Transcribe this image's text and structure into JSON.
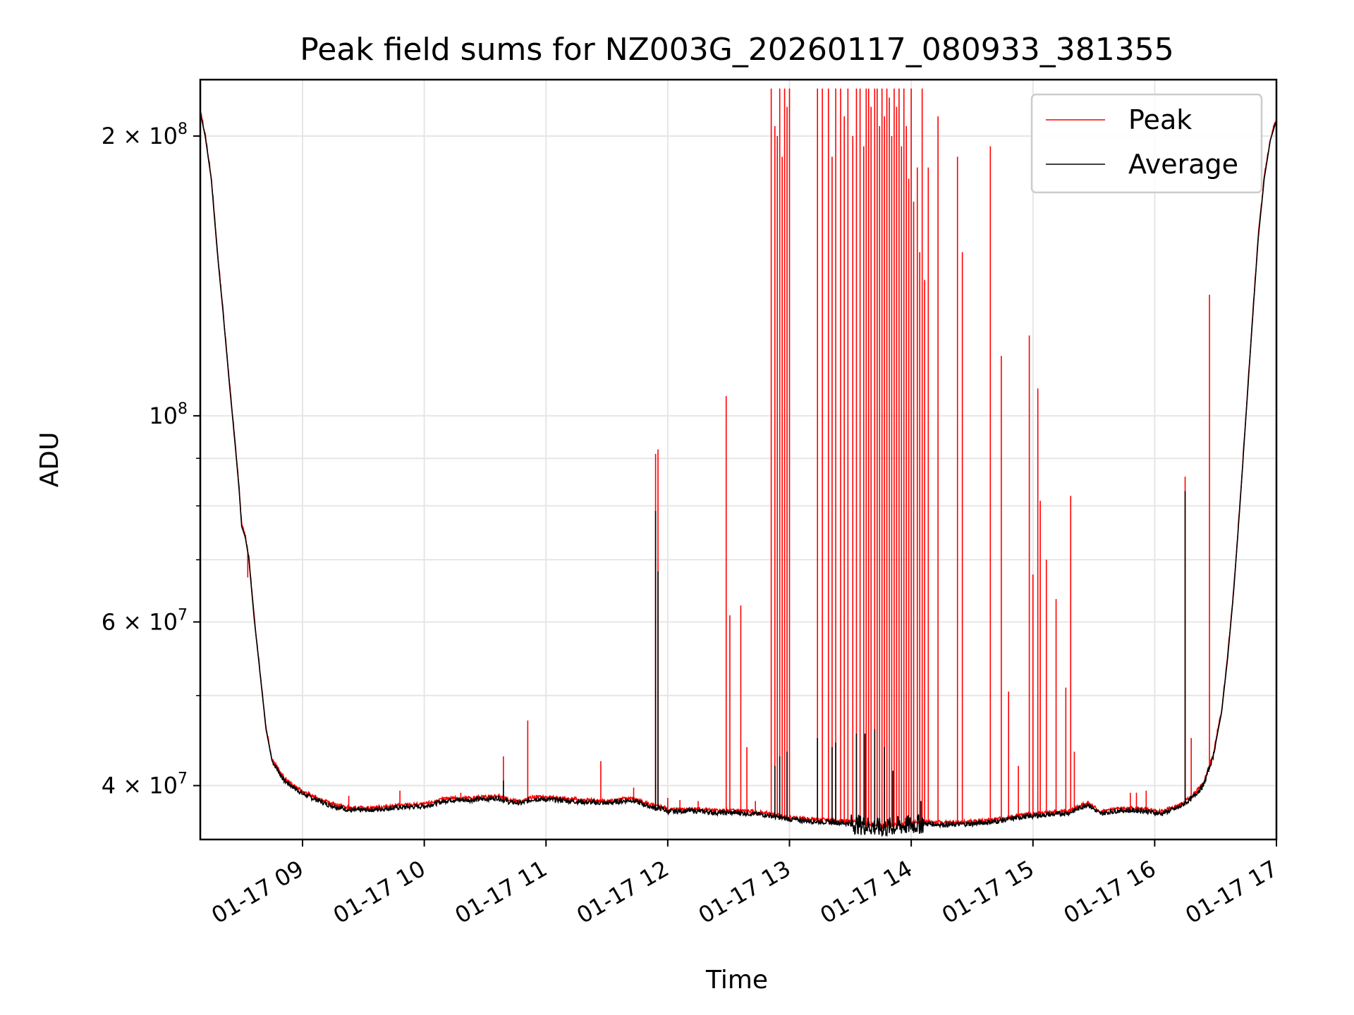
{
  "chart_data": {
    "type": "line",
    "title": "Peak field sums for NZ003G_20260117_080933_381355",
    "xlabel": "Time",
    "ylabel": "ADU",
    "x_unit": "hours since 2026-01-17 00:00",
    "xlim": [
      8.16,
      17.0
    ],
    "ylim": [
      35000000,
      230000000
    ],
    "yscale": "log",
    "grid": true,
    "legend_position": "upper right",
    "x_ticks": [
      {
        "value": 9,
        "label": "01-17 09"
      },
      {
        "value": 10,
        "label": "01-17 10"
      },
      {
        "value": 11,
        "label": "01-17 11"
      },
      {
        "value": 12,
        "label": "01-17 12"
      },
      {
        "value": 13,
        "label": "01-17 13"
      },
      {
        "value": 14,
        "label": "01-17 14"
      },
      {
        "value": 15,
        "label": "01-17 15"
      },
      {
        "value": 16,
        "label": "01-17 16"
      },
      {
        "value": 17,
        "label": "01-17 17"
      }
    ],
    "y_major_ticks": [
      {
        "value": 40000000,
        "mantissa": "4",
        "exp": "7"
      },
      {
        "value": 60000000,
        "mantissa": "6",
        "exp": "7"
      },
      {
        "value": 100000000,
        "mantissa": "",
        "exp": "8"
      },
      {
        "value": 200000000,
        "mantissa": "2",
        "exp": "8"
      }
    ],
    "y_minor_ticks": [
      50000000,
      70000000,
      80000000,
      90000000
    ],
    "series": [
      {
        "name": "Peak",
        "color": "#ff0000",
        "baseline_follows": "Average",
        "spikes": [
          {
            "x": 8.55,
            "y": 67000000
          },
          {
            "x": 9.38,
            "y": 39000000
          },
          {
            "x": 9.8,
            "y": 39500000
          },
          {
            "x": 10.3,
            "y": 39300000
          },
          {
            "x": 10.65,
            "y": 43000000
          },
          {
            "x": 10.85,
            "y": 47000000
          },
          {
            "x": 11.45,
            "y": 42500000
          },
          {
            "x": 11.72,
            "y": 39800000
          },
          {
            "x": 11.9,
            "y": 91000000
          },
          {
            "x": 11.92,
            "y": 92000000
          },
          {
            "x": 12.0,
            "y": 38800000
          },
          {
            "x": 12.1,
            "y": 38600000
          },
          {
            "x": 12.25,
            "y": 38500000
          },
          {
            "x": 12.48,
            "y": 105000000
          },
          {
            "x": 12.51,
            "y": 61000000
          },
          {
            "x": 12.6,
            "y": 62500000
          },
          {
            "x": 12.65,
            "y": 44000000
          },
          {
            "x": 12.72,
            "y": 38500000
          },
          {
            "x": 12.85,
            "y": 225000000
          },
          {
            "x": 12.88,
            "y": 205000000
          },
          {
            "x": 12.9,
            "y": 200000000
          },
          {
            "x": 12.92,
            "y": 225000000
          },
          {
            "x": 12.94,
            "y": 190000000
          },
          {
            "x": 12.96,
            "y": 225000000
          },
          {
            "x": 12.98,
            "y": 215000000
          },
          {
            "x": 13.0,
            "y": 225000000
          },
          {
            "x": 13.23,
            "y": 225000000
          },
          {
            "x": 13.27,
            "y": 225000000
          },
          {
            "x": 13.32,
            "y": 225000000
          },
          {
            "x": 13.35,
            "y": 190000000
          },
          {
            "x": 13.38,
            "y": 225000000
          },
          {
            "x": 13.42,
            "y": 225000000
          },
          {
            "x": 13.45,
            "y": 210000000
          },
          {
            "x": 13.48,
            "y": 225000000
          },
          {
            "x": 13.52,
            "y": 200000000
          },
          {
            "x": 13.55,
            "y": 225000000
          },
          {
            "x": 13.58,
            "y": 225000000
          },
          {
            "x": 13.61,
            "y": 195000000
          },
          {
            "x": 13.63,
            "y": 225000000
          },
          {
            "x": 13.65,
            "y": 225000000
          },
          {
            "x": 13.67,
            "y": 215000000
          },
          {
            "x": 13.7,
            "y": 225000000
          },
          {
            "x": 13.72,
            "y": 225000000
          },
          {
            "x": 13.74,
            "y": 205000000
          },
          {
            "x": 13.76,
            "y": 225000000
          },
          {
            "x": 13.78,
            "y": 210000000
          },
          {
            "x": 13.8,
            "y": 225000000
          },
          {
            "x": 13.82,
            "y": 220000000
          },
          {
            "x": 13.84,
            "y": 200000000
          },
          {
            "x": 13.86,
            "y": 225000000
          },
          {
            "x": 13.88,
            "y": 215000000
          },
          {
            "x": 13.9,
            "y": 225000000
          },
          {
            "x": 13.92,
            "y": 195000000
          },
          {
            "x": 13.94,
            "y": 225000000
          },
          {
            "x": 13.96,
            "y": 205000000
          },
          {
            "x": 13.98,
            "y": 180000000
          },
          {
            "x": 14.0,
            "y": 225000000
          },
          {
            "x": 14.02,
            "y": 170000000
          },
          {
            "x": 14.05,
            "y": 185000000
          },
          {
            "x": 14.07,
            "y": 150000000
          },
          {
            "x": 14.09,
            "y": 225000000
          },
          {
            "x": 14.11,
            "y": 140000000
          },
          {
            "x": 14.14,
            "y": 185000000
          },
          {
            "x": 14.22,
            "y": 210000000
          },
          {
            "x": 14.38,
            "y": 190000000
          },
          {
            "x": 14.42,
            "y": 150000000
          },
          {
            "x": 14.65,
            "y": 195000000
          },
          {
            "x": 14.74,
            "y": 116000000
          },
          {
            "x": 14.8,
            "y": 50500000
          },
          {
            "x": 14.88,
            "y": 42000000
          },
          {
            "x": 14.97,
            "y": 122000000
          },
          {
            "x": 15.0,
            "y": 67500000
          },
          {
            "x": 15.04,
            "y": 107000000
          },
          {
            "x": 15.06,
            "y": 81000000
          },
          {
            "x": 15.11,
            "y": 70000000
          },
          {
            "x": 15.19,
            "y": 63500000
          },
          {
            "x": 15.27,
            "y": 51000000
          },
          {
            "x": 15.31,
            "y": 82000000
          },
          {
            "x": 15.34,
            "y": 43500000
          },
          {
            "x": 15.8,
            "y": 39300000
          },
          {
            "x": 15.85,
            "y": 39300000
          },
          {
            "x": 15.93,
            "y": 39500000
          },
          {
            "x": 16.25,
            "y": 86000000
          },
          {
            "x": 16.3,
            "y": 45000000
          },
          {
            "x": 16.45,
            "y": 135000000
          }
        ]
      },
      {
        "name": "Average",
        "color": "#000000",
        "points": [
          {
            "x": 8.16,
            "y": 212000000
          },
          {
            "x": 8.2,
            "y": 200000000
          },
          {
            "x": 8.25,
            "y": 180000000
          },
          {
            "x": 8.3,
            "y": 150000000
          },
          {
            "x": 8.35,
            "y": 128000000
          },
          {
            "x": 8.4,
            "y": 108000000
          },
          {
            "x": 8.45,
            "y": 92000000
          },
          {
            "x": 8.48,
            "y": 83000000
          },
          {
            "x": 8.5,
            "y": 76000000
          },
          {
            "x": 8.53,
            "y": 74000000
          },
          {
            "x": 8.56,
            "y": 70000000
          },
          {
            "x": 8.6,
            "y": 61000000
          },
          {
            "x": 8.65,
            "y": 53000000
          },
          {
            "x": 8.7,
            "y": 46000000
          },
          {
            "x": 8.75,
            "y": 42500000
          },
          {
            "x": 8.85,
            "y": 40500000
          },
          {
            "x": 9.0,
            "y": 39200000
          },
          {
            "x": 9.2,
            "y": 38200000
          },
          {
            "x": 9.4,
            "y": 37600000
          },
          {
            "x": 9.6,
            "y": 37700000
          },
          {
            "x": 9.8,
            "y": 37900000
          },
          {
            "x": 10.0,
            "y": 38000000
          },
          {
            "x": 10.2,
            "y": 38600000
          },
          {
            "x": 10.4,
            "y": 38600000
          },
          {
            "x": 10.6,
            "y": 38800000
          },
          {
            "x": 10.7,
            "y": 38400000
          },
          {
            "x": 10.8,
            "y": 38300000
          },
          {
            "x": 10.9,
            "y": 38700000
          },
          {
            "x": 11.1,
            "y": 38600000
          },
          {
            "x": 11.3,
            "y": 38400000
          },
          {
            "x": 11.5,
            "y": 38300000
          },
          {
            "x": 11.7,
            "y": 38600000
          },
          {
            "x": 11.85,
            "y": 38000000
          },
          {
            "x": 11.9,
            "y": 37800000
          },
          {
            "x": 11.95,
            "y": 37800000
          },
          {
            "x": 12.0,
            "y": 37500000
          },
          {
            "x": 12.2,
            "y": 37600000
          },
          {
            "x": 12.4,
            "y": 37400000
          },
          {
            "x": 12.6,
            "y": 37400000
          },
          {
            "x": 12.8,
            "y": 37200000
          },
          {
            "x": 13.0,
            "y": 36800000
          },
          {
            "x": 13.2,
            "y": 36600000
          },
          {
            "x": 13.4,
            "y": 36500000
          },
          {
            "x": 13.6,
            "y": 36300000
          },
          {
            "x": 13.75,
            "y": 36000000
          },
          {
            "x": 13.9,
            "y": 36200000
          },
          {
            "x": 14.1,
            "y": 36400000
          },
          {
            "x": 14.3,
            "y": 36300000
          },
          {
            "x": 14.5,
            "y": 36400000
          },
          {
            "x": 14.7,
            "y": 36600000
          },
          {
            "x": 14.9,
            "y": 37000000
          },
          {
            "x": 15.1,
            "y": 37200000
          },
          {
            "x": 15.3,
            "y": 37400000
          },
          {
            "x": 15.45,
            "y": 38200000
          },
          {
            "x": 15.55,
            "y": 37300000
          },
          {
            "x": 15.7,
            "y": 37600000
          },
          {
            "x": 15.9,
            "y": 37600000
          },
          {
            "x": 16.05,
            "y": 37300000
          },
          {
            "x": 16.2,
            "y": 37900000
          },
          {
            "x": 16.3,
            "y": 38700000
          },
          {
            "x": 16.4,
            "y": 40000000
          },
          {
            "x": 16.48,
            "y": 43000000
          },
          {
            "x": 16.55,
            "y": 48000000
          },
          {
            "x": 16.6,
            "y": 55000000
          },
          {
            "x": 16.65,
            "y": 65000000
          },
          {
            "x": 16.7,
            "y": 80000000
          },
          {
            "x": 16.75,
            "y": 100000000
          },
          {
            "x": 16.8,
            "y": 125000000
          },
          {
            "x": 16.85,
            "y": 155000000
          },
          {
            "x": 16.9,
            "y": 180000000
          },
          {
            "x": 16.95,
            "y": 198000000
          },
          {
            "x": 17.0,
            "y": 208000000
          }
        ],
        "spikes": [
          {
            "x": 11.9,
            "y": 79000000
          },
          {
            "x": 11.92,
            "y": 68000000
          },
          {
            "x": 10.65,
            "y": 40500000
          },
          {
            "x": 12.88,
            "y": 42000000
          },
          {
            "x": 12.92,
            "y": 43000000
          },
          {
            "x": 12.98,
            "y": 43500000
          },
          {
            "x": 13.23,
            "y": 45000000
          },
          {
            "x": 13.35,
            "y": 44000000
          },
          {
            "x": 13.38,
            "y": 44500000
          },
          {
            "x": 13.55,
            "y": 45500000
          },
          {
            "x": 13.62,
            "y": 45500000
          },
          {
            "x": 13.7,
            "y": 46000000
          },
          {
            "x": 13.78,
            "y": 44000000
          },
          {
            "x": 13.85,
            "y": 41500000
          },
          {
            "x": 14.08,
            "y": 38500000
          },
          {
            "x": 16.25,
            "y": 83000000
          }
        ]
      }
    ]
  }
}
